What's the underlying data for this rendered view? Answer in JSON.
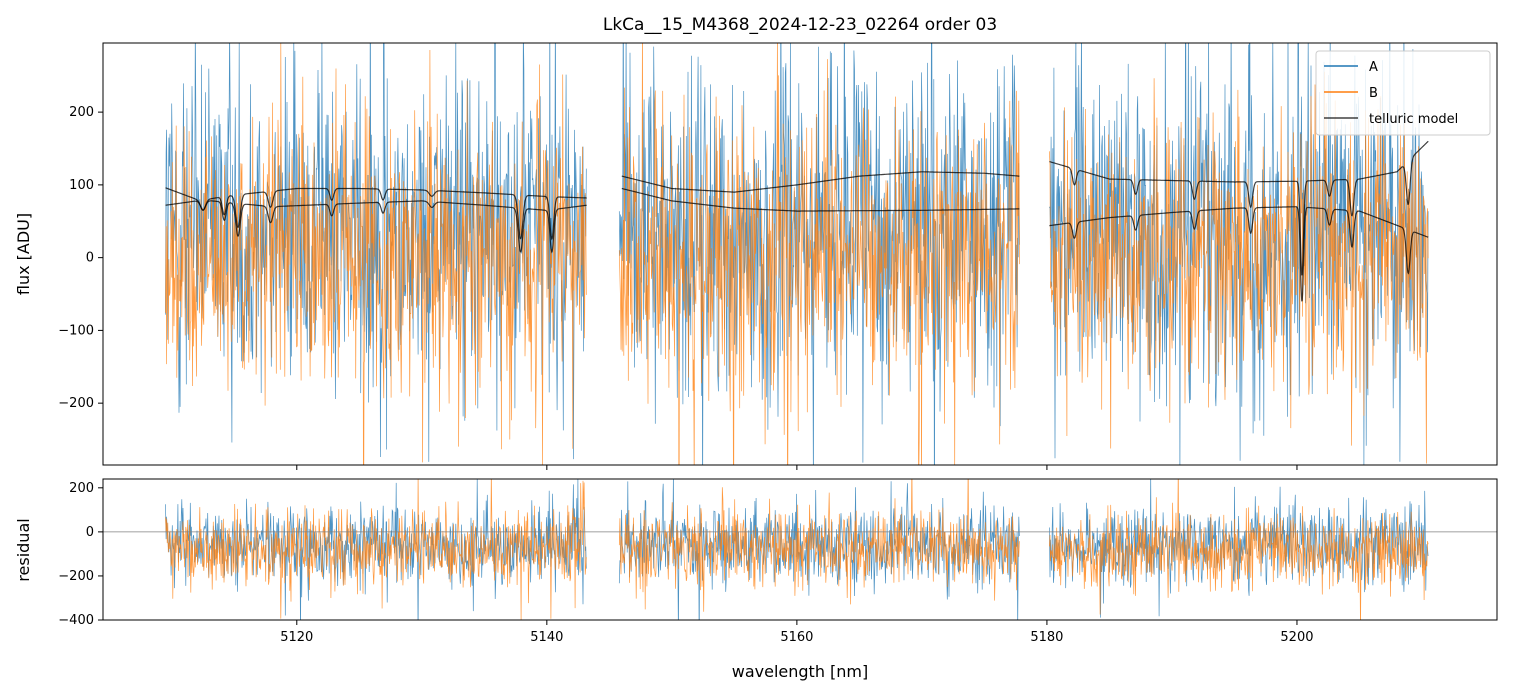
{
  "figure": {
    "title": "LkCa__15_M4368_2024-12-23_02264  order 03"
  },
  "colors": {
    "A": "#1f77b4",
    "B": "#ff7f0e",
    "telluric": "#000000",
    "axes": "#000000",
    "zero_line": "#808080"
  },
  "chart_data": [
    {
      "type": "line",
      "panel": "main",
      "title": "LkCa__15_M4368_2024-12-23_02264  order 03",
      "xlabel": "",
      "ylabel": "flux [ADU]",
      "xlim": [
        5104.5,
        5216
      ],
      "ylim": [
        -285,
        295
      ],
      "yticks": [
        -200,
        -100,
        0,
        100,
        200
      ],
      "ytick_labels": [
        "−200",
        "−100",
        "0",
        "100",
        "200"
      ],
      "xticks": [
        5120,
        5140,
        5160,
        5180,
        5200
      ],
      "grid": false,
      "legend": {
        "placement": "top-right",
        "entries": [
          "A",
          "B",
          "telluric model"
        ]
      },
      "segments": [
        [
          5109.5,
          5143.2
        ],
        [
          5145.8,
          5177.8
        ],
        [
          5180.2,
          5210.5
        ]
      ],
      "series": [
        {
          "name": "A",
          "kind": "noisy spectrum",
          "approx_mean": 40,
          "approx_noise_sigma": 110
        },
        {
          "name": "B",
          "kind": "noisy spectrum",
          "approx_mean": 5,
          "approx_noise_sigma": 95
        },
        {
          "name": "telluric model",
          "upper_curves": [
            {
              "x": [
                5109.5,
                5112,
                5115,
                5120,
                5125,
                5130,
                5135,
                5140,
                5143.2
              ],
              "y": [
                72,
                78,
                86,
                95,
                95,
                93,
                89,
                84,
                82
              ]
            },
            {
              "x": [
                5146,
                5150,
                5155,
                5160,
                5165,
                5170,
                5175,
                5177.8
              ],
              "y": [
                112,
                95,
                90,
                100,
                112,
                118,
                116,
                112
              ]
            },
            {
              "x": [
                5180.2,
                5185,
                5190,
                5195,
                5200,
                5205,
                5208,
                5210.5
              ],
              "y": [
                132,
                108,
                106,
                104,
                105,
                108,
                118,
                160
              ]
            }
          ],
          "lower_curves": [
            {
              "x": [
                5109.5,
                5112,
                5118,
                5125,
                5130,
                5135,
                5140,
                5143.2
              ],
              "y": [
                96,
                80,
                70,
                75,
                78,
                72,
                65,
                72
              ]
            },
            {
              "x": [
                5146,
                5150,
                5155,
                5160,
                5170,
                5177.8
              ],
              "y": [
                95,
                78,
                68,
                64,
                65,
                67
              ]
            },
            {
              "x": [
                5180.2,
                5185,
                5190,
                5195,
                5200,
                5205,
                5210.5
              ],
              "y": [
                44,
                55,
                62,
                68,
                70,
                64,
                28
              ]
            }
          ],
          "absorption_lines": [
            {
              "x": 5112.5,
              "depth": 14,
              "width": 0.2
            },
            {
              "x": 5114.2,
              "depth": 25,
              "width": 0.15
            },
            {
              "x": 5115.3,
              "depth": 45,
              "width": 0.18
            },
            {
              "x": 5117.9,
              "depth": 22,
              "width": 0.18
            },
            {
              "x": 5122.8,
              "depth": 16,
              "width": 0.15
            },
            {
              "x": 5126.9,
              "depth": 15,
              "width": 0.15
            },
            {
              "x": 5130.8,
              "depth": 8,
              "width": 0.2
            },
            {
              "x": 5137.9,
              "depth": 60,
              "width": 0.18
            },
            {
              "x": 5140.4,
              "depth": 58,
              "width": 0.15
            },
            {
              "x": 5182.2,
              "depth": 22,
              "width": 0.15
            },
            {
              "x": 5187.1,
              "depth": 20,
              "width": 0.15
            },
            {
              "x": 5191.8,
              "depth": 25,
              "width": 0.15
            },
            {
              "x": 5196.3,
              "depth": 35,
              "width": 0.15
            },
            {
              "x": 5200.4,
              "depth": 130,
              "width": 0.12
            },
            {
              "x": 5202.6,
              "depth": 22,
              "width": 0.15
            },
            {
              "x": 5204.4,
              "depth": 50,
              "width": 0.15
            },
            {
              "x": 5208.9,
              "depth": 60,
              "width": 0.15
            }
          ]
        }
      ]
    },
    {
      "type": "line",
      "panel": "residual",
      "xlabel": "wavelength [nm]",
      "ylabel": "residual",
      "xlim": [
        5104.5,
        5216
      ],
      "ylim": [
        -400,
        240
      ],
      "yticks": [
        -400,
        -200,
        0,
        200
      ],
      "ytick_labels": [
        "−400",
        "−200",
        "0",
        "200"
      ],
      "xticks": [
        5120,
        5140,
        5160,
        5180,
        5200
      ],
      "xtick_labels": [
        "5120",
        "5140",
        "5160",
        "5180",
        "5200"
      ],
      "grid": false,
      "zero_line": 0,
      "segments": [
        [
          5109.5,
          5143.2
        ],
        [
          5145.8,
          5177.8
        ],
        [
          5180.2,
          5210.5
        ]
      ],
      "series": [
        {
          "name": "A",
          "kind": "noisy residual",
          "approx_mean": -60,
          "approx_noise_sigma": 90
        },
        {
          "name": "B",
          "kind": "noisy residual",
          "approx_mean": -80,
          "approx_noise_sigma": 85
        }
      ]
    }
  ]
}
